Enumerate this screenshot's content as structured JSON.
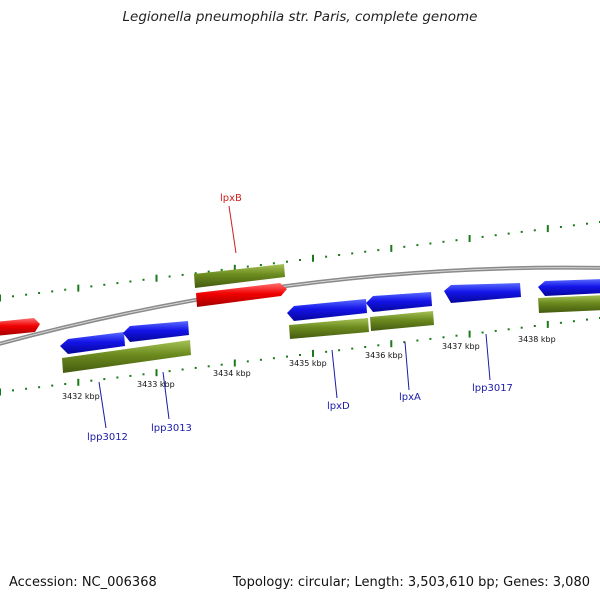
{
  "title": "Legionella pneumophila str. Paris, complete genome",
  "footer": {
    "accession_text": "Accession: NC_006368",
    "summary_text": "Topology: circular; Length: 3,503,610 bp; Genes: 3,080"
  },
  "colors": {
    "backbone": "#8a8a8a",
    "forward_gene": "#1010e0",
    "reverse_gene": "#0a10d8",
    "cds_box": "#6b8a1e",
    "highlight_gene": "#e80000",
    "tick": "#1a7a1a",
    "gene_label": "#1a1aa8",
    "highlight_label": "#cc2222"
  },
  "ruler_labels": [
    {
      "text": "3432 kbp"
    },
    {
      "text": "3433 kbp"
    },
    {
      "text": "3434 kbp"
    },
    {
      "text": "3435 kbp"
    },
    {
      "text": "3436 kbp"
    },
    {
      "text": "3437 kbp"
    },
    {
      "text": "3438 kbp"
    }
  ],
  "gene_labels": [
    {
      "text": "lpxB",
      "highlight": true
    },
    {
      "text": "lpp3012",
      "highlight": false
    },
    {
      "text": "lpp3013",
      "highlight": false
    },
    {
      "text": "lpxD",
      "highlight": false
    },
    {
      "text": "lpxA",
      "highlight": false
    },
    {
      "text": "lpp3017",
      "highlight": false
    }
  ]
}
